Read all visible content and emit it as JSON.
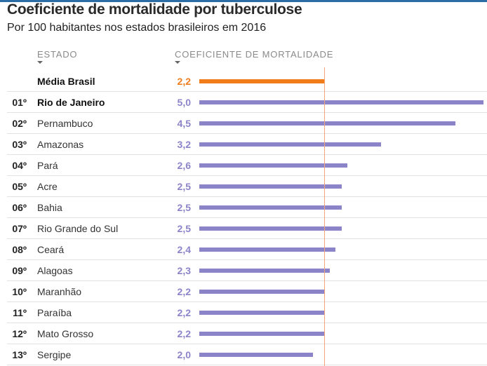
{
  "title": "Coeficiente de mortalidade por tuberculose",
  "subtitle": "Por 100 habitantes nos estados brasileiros em 2016",
  "columns": {
    "state": "ESTADO",
    "value": "COEFICIENTE DE MORTALIDADE"
  },
  "colors": {
    "bar": "#8c84c9",
    "average": "#f07c1a",
    "reference_line": "#f2a679",
    "top_rule": "#2b6ea6"
  },
  "chart_data": {
    "type": "bar",
    "orientation": "horizontal",
    "title": "Coeficiente de mortalidade por tuberculose",
    "subtitle": "Por 100 habitantes nos estados brasileiros em 2016",
    "xlabel": "COEFICIENTE DE MORTALIDADE",
    "ylabel": "ESTADO",
    "xlim": [
      0,
      5.0
    ],
    "reference_value": 2.2,
    "rows": [
      {
        "rank": "",
        "state": "Média Brasil",
        "value": 2.2,
        "label": "2,2",
        "average": true,
        "bold": true
      },
      {
        "rank": "01º",
        "state": "Rio de Janeiro",
        "value": 5.0,
        "label": "5,0",
        "bold": true
      },
      {
        "rank": "02º",
        "state": "Pernambuco",
        "value": 4.5,
        "label": "4,5"
      },
      {
        "rank": "03º",
        "state": "Amazonas",
        "value": 3.2,
        "label": "3,2"
      },
      {
        "rank": "04º",
        "state": "Pará",
        "value": 2.6,
        "label": "2,6"
      },
      {
        "rank": "05º",
        "state": "Acre",
        "value": 2.5,
        "label": "2,5"
      },
      {
        "rank": "06º",
        "state": "Bahia",
        "value": 2.5,
        "label": "2,5"
      },
      {
        "rank": "07º",
        "state": "Rio Grande do Sul",
        "value": 2.5,
        "label": "2,5"
      },
      {
        "rank": "08º",
        "state": "Ceará",
        "value": 2.4,
        "label": "2,4"
      },
      {
        "rank": "09º",
        "state": "Alagoas",
        "value": 2.3,
        "label": "2,3"
      },
      {
        "rank": "10º",
        "state": "Maranhão",
        "value": 2.2,
        "label": "2,2"
      },
      {
        "rank": "11º",
        "state": "Paraíba",
        "value": 2.2,
        "label": "2,2"
      },
      {
        "rank": "12º",
        "state": "Mato Grosso",
        "value": 2.2,
        "label": "2,2"
      },
      {
        "rank": "13º",
        "state": "Sergipe",
        "value": 2.0,
        "label": "2,0"
      }
    ]
  }
}
